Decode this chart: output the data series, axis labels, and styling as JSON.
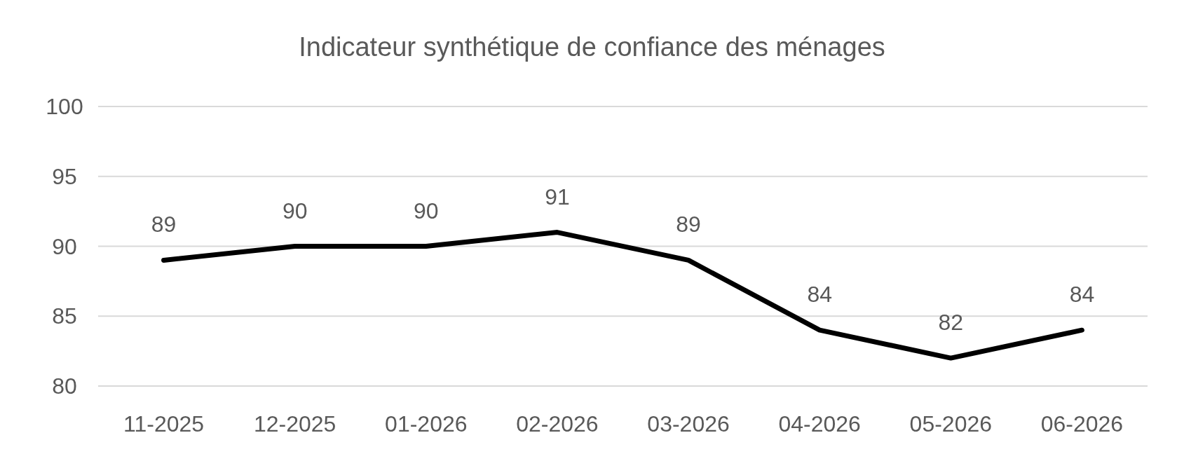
{
  "chart_data": {
    "type": "line",
    "title": "Indicateur synthétique de confiance des ménages",
    "categories": [
      "11-2025",
      "12-2025",
      "01-2026",
      "02-2026",
      "03-2026",
      "04-2026",
      "05-2026",
      "06-2026"
    ],
    "series": [
      {
        "color": "#000000",
        "values": [
          89,
          90,
          90,
          91,
          89,
          84,
          82,
          84
        ]
      }
    ],
    "ylim": [
      80,
      100
    ],
    "yticks": [
      80,
      85,
      90,
      95,
      100
    ],
    "grid": "y",
    "data_labels": true,
    "line_style": "solid"
  }
}
